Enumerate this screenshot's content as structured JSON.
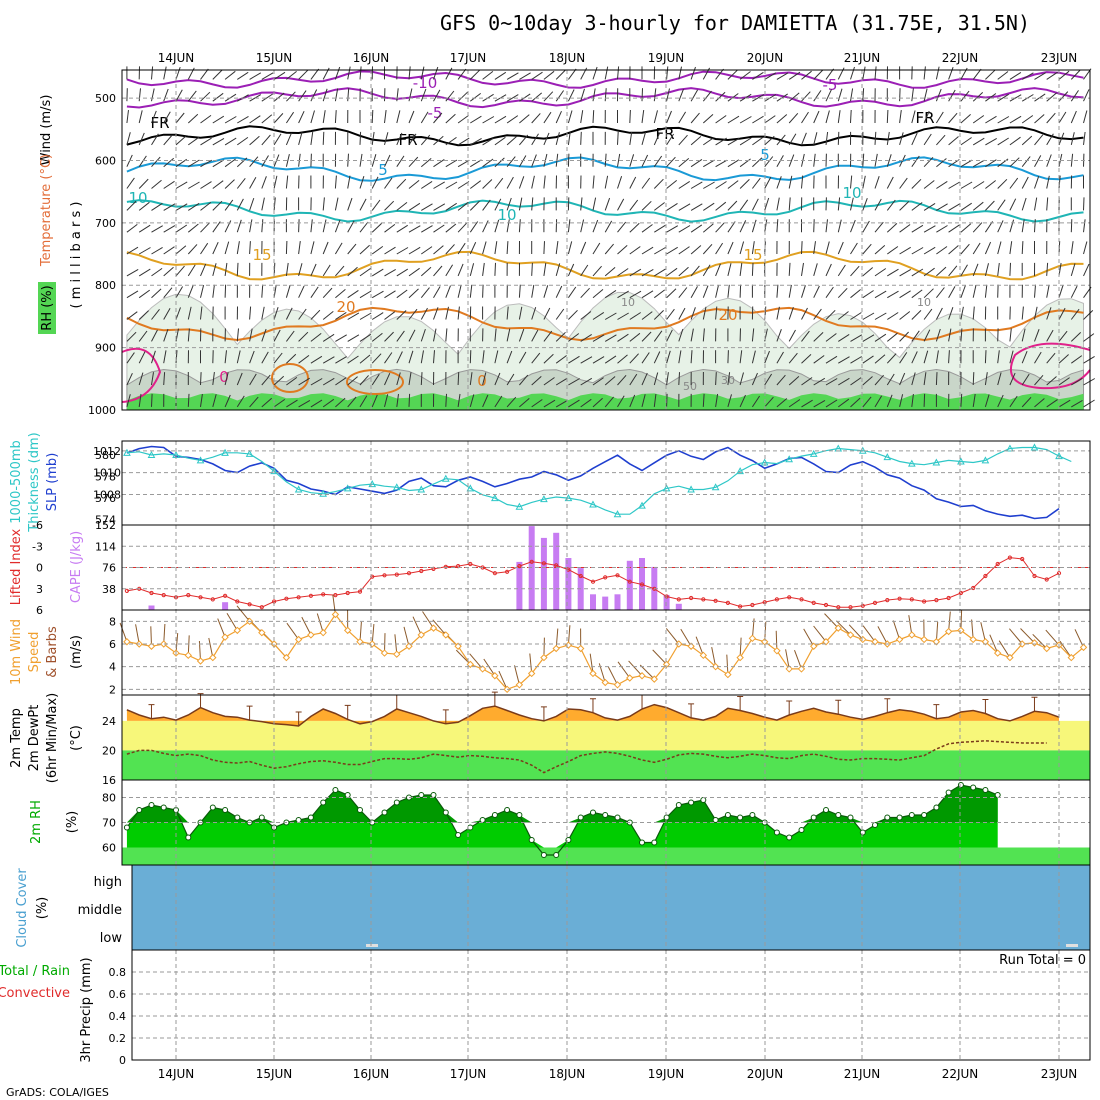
{
  "title": "GFS 0~10day 3-hourly for DAMIETTA (31.75E, 31.5N)",
  "footer": "GrADS: COLA/IGES",
  "dates": [
    "14JUN",
    "15JUN",
    "16JUN",
    "17JUN",
    "18JUN",
    "19JUN",
    "20JUN",
    "21JUN",
    "22JUN",
    "23JUN"
  ],
  "colors": {
    "rh_dark": "#0da80d",
    "rh_mid": "#54d654",
    "cloud": "#6aaed6",
    "temp_orange": "#ffab2e",
    "temp_band_yellow": "#f7f77a",
    "temp_band_green": "#52e352",
    "rh_green_light": "#52e352",
    "rh_green_mid": "#00cc00",
    "rh_green_dark": "#009900",
    "cape_bar": "#c77cf2",
    "lifted": "#e02b2b",
    "wind_speed": "#f0a030",
    "slp": "#1f3fcf",
    "thickness": "#2ec7c7"
  },
  "panels": {
    "upper": {
      "ylabel_line1_a": "RH (%)",
      "ylabel_line1_b": "Temperature (°C)",
      "ylabel_line1_c": "Wind (m/s)",
      "ylabel_line2": "( m i l l i b a r s )",
      "ticks": [
        "500",
        "600",
        "700",
        "800",
        "900",
        "1000"
      ],
      "contour_labels": {
        "t_minus10": "-10",
        "t_minus5": "-5",
        "t_fr": "FR",
        "t_5": "5",
        "t_10": "10",
        "t_15": "15",
        "t_20": "20",
        "t_0": "0",
        "rh_10": "10",
        "rh_30": "30",
        "rh_50": "50"
      }
    },
    "slp": {
      "label_thk": "1000-500mb",
      "label_thk2": "Thickness (dm)",
      "label_slp": "SLP (mb)",
      "left_ticks": [
        "580",
        "578",
        "576",
        "574"
      ],
      "right_ticks": [
        "1012",
        "1010",
        "1008"
      ]
    },
    "cape": {
      "label_li": "Lifted Index",
      "label_cape": "CAPE (J/kg)",
      "left_ticks": [
        "-6",
        "-3",
        "0",
        "3",
        "6"
      ],
      "right_ticks": [
        "152",
        "114",
        "76",
        "38"
      ]
    },
    "wind10": {
      "label_a": "10m Wind",
      "label_b": "Speed",
      "label_c": "& Barbs",
      "label_unit": "(m/s)",
      "ticks": [
        "8",
        "6",
        "4",
        "2"
      ]
    },
    "temp2m": {
      "label_a": "2m Temp",
      "label_b": "2m DewPt",
      "label_c": "(6hr Min/Max)",
      "label_unit": "(°C)",
      "ticks": [
        "24",
        "20",
        "16"
      ]
    },
    "rh2m": {
      "label_a": "2m RH",
      "label_unit": "(%)",
      "ticks": [
        "80",
        "70",
        "60"
      ]
    },
    "cloud": {
      "label_a": "Cloud Cover",
      "label_unit": "(%)",
      "levels": [
        "high",
        "middle",
        "low"
      ]
    },
    "precip": {
      "label_a": "Total / Rain",
      "label_b": "Convective",
      "label_c": "3hr Precip (mm)",
      "run_total": "Run Total = 0",
      "ticks": [
        "0.8",
        "0.6",
        "0.4",
        "0.2",
        "0"
      ]
    }
  },
  "chart_data": [
    {
      "type": "line",
      "title": "SLP (mb) and 1000-500mb Thickness (dm)",
      "x_start": "13JUN 12Z",
      "x_step_hours": 3,
      "series": [
        {
          "name": "SLP (mb)",
          "values": [
            1011.8,
            1012.2,
            1012.4,
            1012.3,
            1011.5,
            1011.4,
            1011.2,
            1010.8,
            1010.2,
            1010.0,
            1010.6,
            1010.9,
            1010.4,
            1009.3,
            1009.0,
            1008.5,
            1008.3,
            1008.0,
            1008.7,
            1008.5,
            1008.3,
            1008.1,
            1008.4,
            1009.2,
            1009.5,
            1008.8,
            1008.7,
            1009.3,
            1009.6,
            1009.2,
            1008.7,
            1009.0,
            1009.4,
            1009.6,
            1010.1,
            1009.8,
            1009.3,
            1009.7,
            1010.4,
            1011.0,
            1011.6,
            1010.8,
            1010.2,
            1010.9,
            1011.6,
            1012.0,
            1011.5,
            1011.2,
            1011.9,
            1012.3,
            1011.6,
            1011.1,
            1010.4,
            1010.8,
            1011.3,
            1011.4,
            1010.8,
            1010.1,
            1010.0,
            1010.7,
            1011.0,
            1010.5,
            1009.8,
            1009.5,
            1008.8,
            1008.4,
            1007.6,
            1007.3,
            1006.9,
            1007.0,
            1006.5,
            1006.2,
            1006.0,
            1006.1,
            1005.8,
            1005.9,
            1006.7
          ]
        },
        {
          "name": "1000-500mb Thickness (dm)",
          "values": [
            580.2,
            580.3,
            580.0,
            580.1,
            580.0,
            579.7,
            579.5,
            579.8,
            580.2,
            580.2,
            580.1,
            579.4,
            578.5,
            577.5,
            576.8,
            576.5,
            576.4,
            576.6,
            576.9,
            577.2,
            577.3,
            577.1,
            577.0,
            576.7,
            576.8,
            577.3,
            577.8,
            577.7,
            576.9,
            576.3,
            576.0,
            575.4,
            575.2,
            575.6,
            575.9,
            576.1,
            576.0,
            575.8,
            575.4,
            574.9,
            574.5,
            574.5,
            575.3,
            576.4,
            576.9,
            577.1,
            576.8,
            576.8,
            577.0,
            577.6,
            578.5,
            579.1,
            579.3,
            579.2,
            579.6,
            579.9,
            580.1,
            580.4,
            580.6,
            580.5,
            580.4,
            580.2,
            579.8,
            579.4,
            579.2,
            579.1,
            579.3,
            579.5,
            579.4,
            579.3,
            579.5,
            580.1,
            580.6,
            580.7,
            580.7,
            580.5,
            579.9,
            579.4
          ]
        }
      ]
    },
    {
      "type": "bar",
      "title": "CAPE (J/kg) and Lifted Index",
      "x_start": "13JUN 12Z",
      "x_step_hours": 3,
      "series": [
        {
          "name": "CAPE (J/kg)",
          "values": [
            0,
            0,
            8,
            0,
            0,
            0,
            0,
            0,
            14,
            0,
            0,
            0,
            0,
            0,
            0,
            0,
            0,
            0,
            0,
            0,
            0,
            0,
            0,
            0,
            0,
            0,
            0,
            0,
            0,
            0,
            0,
            0,
            86,
            150,
            129,
            138,
            93,
            75,
            28,
            24,
            28,
            88,
            93,
            77,
            27,
            11,
            0,
            0,
            0,
            0,
            0,
            0,
            0,
            0,
            0,
            0,
            0,
            0,
            0,
            0,
            0,
            0,
            0,
            0,
            0,
            0,
            0,
            0,
            0,
            0,
            0,
            0,
            0,
            0,
            0,
            0,
            0,
            0,
            0,
            0,
            11,
            14,
            8,
            0,
            0,
            0,
            0,
            0,
            0
          ]
        },
        {
          "name": "Lifted Index",
          "values": [
            3.3,
            3.0,
            3.6,
            3.9,
            4.2,
            3.9,
            4.2,
            4.5,
            4.0,
            4.8,
            5.2,
            5.6,
            4.8,
            4.4,
            4.2,
            4.0,
            3.8,
            3.9,
            3.6,
            3.4,
            1.3,
            1.1,
            1.0,
            0.8,
            0.5,
            0.2,
            -0.1,
            -0.2,
            -0.5,
            0.0,
            0.8,
            0.6,
            -0.2,
            -0.8,
            -0.6,
            -0.3,
            0.3,
            1.2,
            2.0,
            1.4,
            1.1,
            2.0,
            2.4,
            3.0,
            4.1,
            4.5,
            4.3,
            4.5,
            4.7,
            5.0,
            5.5,
            5.3,
            4.9,
            4.5,
            4.2,
            4.5,
            5.0,
            5.3,
            5.6,
            5.6,
            5.4,
            5.0,
            4.6,
            4.4,
            4.5,
            4.8,
            4.6,
            4.3,
            3.6,
            2.9,
            1.2,
            -0.5,
            -1.4,
            -1.2,
            1.2,
            1.7,
            0.8
          ]
        }
      ]
    },
    {
      "type": "line",
      "title": "10m Wind Speed (m/s)",
      "x_start": "13JUN 12Z",
      "x_step_hours": 3,
      "series": [
        {
          "name": "10m Wind Speed (m/s)",
          "values": [
            6.2,
            6.0,
            5.8,
            6.0,
            5.2,
            5.0,
            4.5,
            4.8,
            6.6,
            7.2,
            8.0,
            7.0,
            6.0,
            4.8,
            6.4,
            6.8,
            7.0,
            8.6,
            7.2,
            6.2,
            6.0,
            5.2,
            5.1,
            5.8,
            6.8,
            7.4,
            6.8,
            5.8,
            4.2,
            3.8,
            3.2,
            2.0,
            2.4,
            3.4,
            4.8,
            5.6,
            5.9,
            5.6,
            3.4,
            2.6,
            2.4,
            3.0,
            3.2,
            2.9,
            4.2,
            6.0,
            5.8,
            5.0,
            4.0,
            3.3,
            4.8,
            6.5,
            6.2,
            5.4,
            3.8,
            3.8,
            5.8,
            6.2,
            7.4,
            6.8,
            6.4,
            6.2,
            6.0,
            6.4,
            6.8,
            6.4,
            6.2,
            7.1,
            7.2,
            6.4,
            6.2,
            5.2,
            4.8,
            6.0,
            6.1,
            5.6,
            5.9,
            4.8,
            5.7
          ]
        }
      ]
    },
    {
      "type": "area",
      "title": "2m Temp and 2m DewPt (°C)",
      "x_start": "13JUN 12Z",
      "x_step_hours": 3,
      "series": [
        {
          "name": "2m Temp",
          "values": [
            25.5,
            24.8,
            24.3,
            24.5,
            24.1,
            24.8,
            25.8,
            25.1,
            24.6,
            24.5,
            24.1,
            23.9,
            23.6,
            23.5,
            23.3,
            24.6,
            25.6,
            25.0,
            24.2,
            23.6,
            23.9,
            24.6,
            25.6,
            25.1,
            24.6,
            24.0,
            23.6,
            23.8,
            24.7,
            25.7,
            26.0,
            25.4,
            24.8,
            24.3,
            24.0,
            24.6,
            25.6,
            25.5,
            25.1,
            24.4,
            24.1,
            24.6,
            25.6,
            26.2,
            25.8,
            25.1,
            24.4,
            24.1,
            24.6,
            25.7,
            25.4,
            25.0,
            24.5,
            24.1,
            24.8,
            25.3,
            25.7,
            25.2,
            24.9,
            24.5,
            24.2,
            24.6,
            25.1,
            25.5,
            25.3,
            24.9,
            24.3,
            24.5,
            25.2,
            25.4,
            25.0,
            24.3,
            24.0,
            24.6,
            25.3,
            25.1,
            24.5
          ]
        },
        {
          "name": "2m DewPt",
          "values": [
            19.5,
            20.0,
            20.0,
            19.6,
            19.3,
            19.5,
            19.3,
            18.7,
            18.4,
            18.3,
            18.5,
            18.0,
            17.6,
            17.8,
            18.2,
            18.5,
            18.6,
            18.4,
            18.1,
            18.1,
            18.5,
            18.9,
            18.9,
            18.8,
            19.0,
            19.5,
            19.3,
            19.1,
            19.3,
            19.2,
            19.0,
            18.9,
            18.7,
            18.0,
            17.0,
            17.8,
            18.5,
            19.3,
            19.6,
            19.8,
            19.6,
            19.2,
            18.7,
            18.4,
            18.8,
            19.4,
            19.6,
            19.5,
            19.2,
            19.0,
            19.2,
            19.5,
            19.3,
            19.0,
            18.9,
            19.3,
            19.5,
            19.2,
            18.8,
            18.7,
            18.9,
            18.9,
            18.8,
            18.7,
            19.0,
            19.3,
            20.2,
            20.9,
            21.1,
            21.2,
            21.3,
            21.2,
            21.1,
            21.0,
            21.0,
            21.0
          ]
        }
      ]
    },
    {
      "type": "area",
      "title": "2m RH (%)",
      "x_start": "13JUN 12Z",
      "x_step_hours": 3,
      "series": [
        {
          "name": "2m RH (%)",
          "values": [
            68,
            75,
            77,
            76,
            75,
            64,
            70,
            76,
            75,
            72,
            70,
            72,
            68,
            70,
            71,
            72,
            78,
            83,
            81,
            75,
            70,
            74,
            78,
            80,
            81,
            81,
            74,
            65,
            68,
            71,
            73,
            75,
            73,
            63,
            57,
            57,
            63,
            72,
            74,
            73,
            72,
            70,
            62,
            62,
            72,
            77,
            78,
            79,
            71,
            73,
            72,
            73,
            70,
            66,
            64,
            67,
            72,
            75,
            73,
            72,
            66,
            69,
            72,
            72,
            73,
            73,
            76,
            82,
            85,
            84,
            83,
            81
          ]
        }
      ]
    },
    {
      "type": "bar",
      "title": "3hr Precip (mm)",
      "categories": [],
      "values": [],
      "ylim": [
        0,
        1
      ]
    }
  ]
}
